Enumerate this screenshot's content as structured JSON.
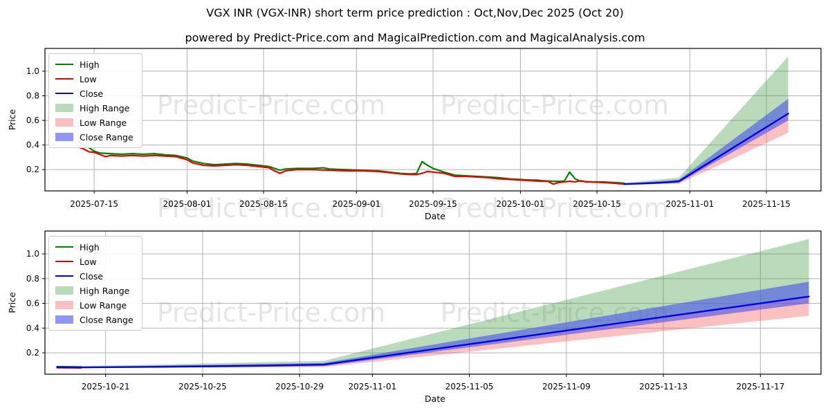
{
  "figure": {
    "title": "VGX INR (VGX-INR) short term price prediction : Oct,Nov,Dec 2025 (Oct 20)",
    "subtitle": "powered by Predict-Price.com and MagicalPrediction.com and MagicalAnalysis.com",
    "watermark": "Predict-Price.com",
    "colors": {
      "high": "#008000",
      "low": "#e80000",
      "close": "#0000e0",
      "high_range": "rgba(70,160,70,0.38)",
      "low_range": "rgba(250,90,90,0.38)",
      "close_range": "rgba(75,85,235,0.62)",
      "grid": "#b0b0b0",
      "watermark_color": "rgba(110,110,110,0.18)"
    }
  },
  "chart_data": [
    {
      "id": "full-history-chart",
      "type": "line",
      "xlabel": "Date",
      "ylabel": "Price",
      "grid": true,
      "legend_position": "upper-left",
      "xlim": [
        "2025-07-06",
        "2025-11-25"
      ],
      "ylim": [
        0.027,
        1.185
      ],
      "y_ticks": [
        "0.2",
        "0.4",
        "0.6",
        "0.8",
        "1.0"
      ],
      "y_tick_values": [
        0.2,
        0.4,
        0.6,
        0.8,
        1.0
      ],
      "x_ticks": [
        "2025-07-15",
        "2025-08-01",
        "2025-08-15",
        "2025-09-01",
        "2025-09-15",
        "2025-10-01",
        "2025-10-15",
        "2025-11-01",
        "2025-11-15"
      ],
      "legend": [
        {
          "label": "High",
          "kind": "line",
          "color": "#008000"
        },
        {
          "label": "Low",
          "kind": "line",
          "color": "#e80000"
        },
        {
          "label": "Close",
          "kind": "line",
          "color": "#0000e0"
        },
        {
          "label": "High Range",
          "kind": "patch",
          "color": "rgba(70,160,70,0.38)"
        },
        {
          "label": "Low Range",
          "kind": "patch",
          "color": "rgba(250,90,90,0.38)"
        },
        {
          "label": "Close Range",
          "kind": "patch",
          "color": "rgba(75,85,235,0.62)"
        }
      ],
      "bands": [
        {
          "name": "High Range",
          "color": "rgba(70,160,70,0.38)",
          "upper": [
            [
              "2025-10-20",
              0.092
            ],
            [
              "2025-10-30",
              0.135
            ],
            [
              "2025-11-19",
              1.12
            ]
          ],
          "lower": [
            [
              "2025-10-20",
              0.08
            ],
            [
              "2025-10-30",
              0.1
            ],
            [
              "2025-11-19",
              0.655
            ]
          ]
        },
        {
          "name": "Low Range",
          "color": "rgba(250,90,90,0.38)",
          "upper": [
            [
              "2025-10-20",
              0.085
            ],
            [
              "2025-10-30",
              0.11
            ],
            [
              "2025-11-19",
              0.655
            ]
          ],
          "lower": [
            [
              "2025-10-20",
              0.075
            ],
            [
              "2025-10-30",
              0.085
            ],
            [
              "2025-11-19",
              0.5
            ]
          ]
        },
        {
          "name": "Close Range",
          "color": "rgba(75,85,235,0.62)",
          "upper": [
            [
              "2025-10-20",
              0.085
            ],
            [
              "2025-10-30",
              0.118
            ],
            [
              "2025-11-19",
              0.775
            ]
          ],
          "lower": [
            [
              "2025-10-20",
              0.078
            ],
            [
              "2025-10-30",
              0.092
            ],
            [
              "2025-11-19",
              0.6
            ]
          ]
        }
      ],
      "series": [
        {
          "name": "High",
          "color": "#008000",
          "width": 2.2,
          "points": [
            [
              "2025-07-12",
              0.425
            ],
            [
              "2025-07-13",
              0.405
            ],
            [
              "2025-07-14",
              0.38
            ],
            [
              "2025-07-15",
              0.35
            ],
            [
              "2025-07-16",
              0.335
            ],
            [
              "2025-07-18",
              0.33
            ],
            [
              "2025-07-20",
              0.325
            ],
            [
              "2025-07-22",
              0.33
            ],
            [
              "2025-07-24",
              0.325
            ],
            [
              "2025-07-26",
              0.33
            ],
            [
              "2025-07-28",
              0.32
            ],
            [
              "2025-07-30",
              0.315
            ],
            [
              "2025-08-01",
              0.295
            ],
            [
              "2025-08-02",
              0.27
            ],
            [
              "2025-08-04",
              0.25
            ],
            [
              "2025-08-06",
              0.24
            ],
            [
              "2025-08-08",
              0.245
            ],
            [
              "2025-08-10",
              0.25
            ],
            [
              "2025-08-12",
              0.245
            ],
            [
              "2025-08-14",
              0.235
            ],
            [
              "2025-08-16",
              0.225
            ],
            [
              "2025-08-17",
              0.21
            ],
            [
              "2025-08-18",
              0.195
            ],
            [
              "2025-08-19",
              0.205
            ],
            [
              "2025-08-21",
              0.21
            ],
            [
              "2025-08-24",
              0.21
            ],
            [
              "2025-08-26",
              0.215
            ],
            [
              "2025-08-27",
              0.205
            ],
            [
              "2025-08-30",
              0.2
            ],
            [
              "2025-09-02",
              0.195
            ],
            [
              "2025-09-05",
              0.19
            ],
            [
              "2025-09-07",
              0.18
            ],
            [
              "2025-09-09",
              0.17
            ],
            [
              "2025-09-11",
              0.165
            ],
            [
              "2025-09-12",
              0.17
            ],
            [
              "2025-09-13",
              0.265
            ],
            [
              "2025-09-14",
              0.235
            ],
            [
              "2025-09-15",
              0.21
            ],
            [
              "2025-09-17",
              0.18
            ],
            [
              "2025-09-19",
              0.155
            ],
            [
              "2025-09-21",
              0.15
            ],
            [
              "2025-09-23",
              0.145
            ],
            [
              "2025-09-25",
              0.14
            ],
            [
              "2025-09-27",
              0.135
            ],
            [
              "2025-09-29",
              0.125
            ],
            [
              "2025-10-01",
              0.12
            ],
            [
              "2025-10-03",
              0.115
            ],
            [
              "2025-10-04",
              0.115
            ],
            [
              "2025-10-05",
              0.11
            ],
            [
              "2025-10-07",
              0.105
            ],
            [
              "2025-10-09",
              0.105
            ],
            [
              "2025-10-10",
              0.18
            ],
            [
              "2025-10-11",
              0.125
            ],
            [
              "2025-10-12",
              0.105
            ],
            [
              "2025-10-14",
              0.1
            ],
            [
              "2025-10-16",
              0.1
            ],
            [
              "2025-10-18",
              0.095
            ],
            [
              "2025-10-20",
              0.09
            ]
          ]
        },
        {
          "name": "Low",
          "color": "#e80000",
          "width": 2.2,
          "points": [
            [
              "2025-07-12",
              0.385
            ],
            [
              "2025-07-13",
              0.37
            ],
            [
              "2025-07-14",
              0.345
            ],
            [
              "2025-07-15",
              0.34
            ],
            [
              "2025-07-16",
              0.325
            ],
            [
              "2025-07-17",
              0.305
            ],
            [
              "2025-07-18",
              0.315
            ],
            [
              "2025-07-20",
              0.31
            ],
            [
              "2025-07-22",
              0.315
            ],
            [
              "2025-07-24",
              0.31
            ],
            [
              "2025-07-26",
              0.315
            ],
            [
              "2025-07-28",
              0.31
            ],
            [
              "2025-07-30",
              0.305
            ],
            [
              "2025-08-01",
              0.28
            ],
            [
              "2025-08-02",
              0.255
            ],
            [
              "2025-08-04",
              0.235
            ],
            [
              "2025-08-06",
              0.23
            ],
            [
              "2025-08-08",
              0.235
            ],
            [
              "2025-08-10",
              0.24
            ],
            [
              "2025-08-12",
              0.235
            ],
            [
              "2025-08-14",
              0.225
            ],
            [
              "2025-08-16",
              0.215
            ],
            [
              "2025-08-17",
              0.19
            ],
            [
              "2025-08-18",
              0.17
            ],
            [
              "2025-08-19",
              0.19
            ],
            [
              "2025-08-21",
              0.2
            ],
            [
              "2025-08-24",
              0.2
            ],
            [
              "2025-08-27",
              0.195
            ],
            [
              "2025-08-30",
              0.19
            ],
            [
              "2025-09-02",
              0.19
            ],
            [
              "2025-09-05",
              0.185
            ],
            [
              "2025-09-07",
              0.175
            ],
            [
              "2025-09-09",
              0.165
            ],
            [
              "2025-09-11",
              0.16
            ],
            [
              "2025-09-12",
              0.16
            ],
            [
              "2025-09-13",
              0.17
            ],
            [
              "2025-09-14",
              0.185
            ],
            [
              "2025-09-15",
              0.18
            ],
            [
              "2025-09-17",
              0.17
            ],
            [
              "2025-09-19",
              0.145
            ],
            [
              "2025-09-21",
              0.145
            ],
            [
              "2025-09-23",
              0.14
            ],
            [
              "2025-09-25",
              0.135
            ],
            [
              "2025-09-27",
              0.125
            ],
            [
              "2025-09-29",
              0.12
            ],
            [
              "2025-10-01",
              0.115
            ],
            [
              "2025-10-03",
              0.11
            ],
            [
              "2025-10-05",
              0.105
            ],
            [
              "2025-10-06",
              0.105
            ],
            [
              "2025-10-07",
              0.082
            ],
            [
              "2025-10-08",
              0.095
            ],
            [
              "2025-10-09",
              0.1
            ],
            [
              "2025-10-10",
              0.105
            ],
            [
              "2025-10-11",
              0.1
            ],
            [
              "2025-10-12",
              0.11
            ],
            [
              "2025-10-13",
              0.1
            ],
            [
              "2025-10-14",
              0.1
            ],
            [
              "2025-10-16",
              0.095
            ],
            [
              "2025-10-18",
              0.09
            ],
            [
              "2025-10-20",
              0.082
            ]
          ]
        },
        {
          "name": "Close",
          "color": "#0000e0",
          "width": 2.4,
          "points": [
            [
              "2025-10-20",
              0.082
            ],
            [
              "2025-10-23",
              0.087
            ],
            [
              "2025-10-26",
              0.092
            ],
            [
              "2025-10-28",
              0.097
            ],
            [
              "2025-10-30",
              0.105
            ],
            [
              "2025-11-19",
              0.655
            ]
          ]
        }
      ]
    },
    {
      "id": "prediction-zoom-chart",
      "type": "line",
      "xlabel": "Date",
      "ylabel": "Price",
      "grid": true,
      "legend_position": "upper-left",
      "xlim": [
        "2025-10-18T12:00:00",
        "2025-11-19T12:00:00"
      ],
      "ylim": [
        0.027,
        1.185
      ],
      "y_ticks": [
        "0.2",
        "0.4",
        "0.6",
        "0.8",
        "1.0"
      ],
      "y_tick_values": [
        0.2,
        0.4,
        0.6,
        0.8,
        1.0
      ],
      "x_ticks": [
        "2025-10-21",
        "2025-10-25",
        "2025-10-29",
        "2025-11-01",
        "2025-11-05",
        "2025-11-09",
        "2025-11-13",
        "2025-11-17"
      ],
      "legend": [
        {
          "label": "High",
          "kind": "line",
          "color": "#008000"
        },
        {
          "label": "Low",
          "kind": "line",
          "color": "#e80000"
        },
        {
          "label": "Close",
          "kind": "line",
          "color": "#0000e0"
        },
        {
          "label": "High Range",
          "kind": "patch",
          "color": "rgba(70,160,70,0.38)"
        },
        {
          "label": "Low Range",
          "kind": "patch",
          "color": "rgba(250,90,90,0.38)"
        },
        {
          "label": "Close Range",
          "kind": "patch",
          "color": "rgba(75,85,235,0.62)"
        }
      ],
      "bands": [
        {
          "name": "High Range",
          "color": "rgba(70,160,70,0.38)",
          "upper": [
            [
              "2025-10-20",
              0.092
            ],
            [
              "2025-10-30",
              0.135
            ],
            [
              "2025-11-19",
              1.12
            ]
          ],
          "lower": [
            [
              "2025-10-20",
              0.08
            ],
            [
              "2025-10-30",
              0.1
            ],
            [
              "2025-11-19",
              0.655
            ]
          ]
        },
        {
          "name": "Low Range",
          "color": "rgba(250,90,90,0.38)",
          "upper": [
            [
              "2025-10-20",
              0.085
            ],
            [
              "2025-10-30",
              0.11
            ],
            [
              "2025-11-19",
              0.655
            ]
          ],
          "lower": [
            [
              "2025-10-20",
              0.075
            ],
            [
              "2025-10-30",
              0.085
            ],
            [
              "2025-11-19",
              0.5
            ]
          ]
        },
        {
          "name": "Close Range",
          "color": "rgba(75,85,235,0.62)",
          "upper": [
            [
              "2025-10-20",
              0.085
            ],
            [
              "2025-10-30",
              0.118
            ],
            [
              "2025-11-19",
              0.775
            ]
          ],
          "lower": [
            [
              "2025-10-20",
              0.078
            ],
            [
              "2025-10-30",
              0.092
            ],
            [
              "2025-11-19",
              0.6
            ]
          ]
        }
      ],
      "series": [
        {
          "name": "High",
          "color": "#008000",
          "width": 2.2,
          "points": [
            [
              "2025-10-19",
              0.088
            ],
            [
              "2025-10-20",
              0.086
            ]
          ]
        },
        {
          "name": "Low",
          "color": "#e80000",
          "width": 2.2,
          "points": [
            [
              "2025-10-19",
              0.079
            ],
            [
              "2025-10-20",
              0.078
            ]
          ]
        },
        {
          "name": "Close",
          "color": "#0000e0",
          "width": 2.4,
          "points": [
            [
              "2025-10-19",
              0.084
            ],
            [
              "2025-10-20",
              0.082
            ],
            [
              "2025-10-23",
              0.087
            ],
            [
              "2025-10-26",
              0.092
            ],
            [
              "2025-10-28",
              0.097
            ],
            [
              "2025-10-30",
              0.105
            ],
            [
              "2025-11-19",
              0.655
            ]
          ]
        }
      ]
    }
  ]
}
